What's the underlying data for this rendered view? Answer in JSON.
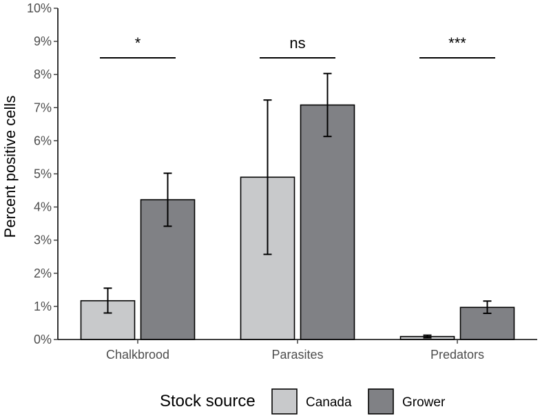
{
  "chart_data": {
    "type": "bar",
    "categories": [
      "Chalkbrood",
      "Parasites",
      "Predators"
    ],
    "series": [
      {
        "name": "Canada",
        "color": "#c8c9cb",
        "values": [
          1.17,
          4.9,
          0.09
        ],
        "err_low": [
          0.8,
          2.57,
          0.05
        ],
        "err_high": [
          1.55,
          7.23,
          0.13
        ]
      },
      {
        "name": "Grower",
        "color": "#808185",
        "values": [
          4.22,
          7.08,
          0.97
        ],
        "err_low": [
          3.42,
          6.13,
          0.79
        ],
        "err_high": [
          5.02,
          8.03,
          1.16
        ]
      }
    ],
    "significance": [
      "*",
      "ns",
      "***"
    ],
    "ylabel": "Percent positive cells",
    "xlabel": "",
    "ylim": [
      0,
      10
    ],
    "yticks": [
      "0%",
      "1%",
      "2%",
      "3%",
      "4%",
      "5%",
      "6%",
      "7%",
      "8%",
      "9%",
      "10%"
    ],
    "legend": {
      "title": "Stock source",
      "position": "bottom",
      "entries": [
        "Canada",
        "Grower"
      ]
    },
    "grid": false
  }
}
